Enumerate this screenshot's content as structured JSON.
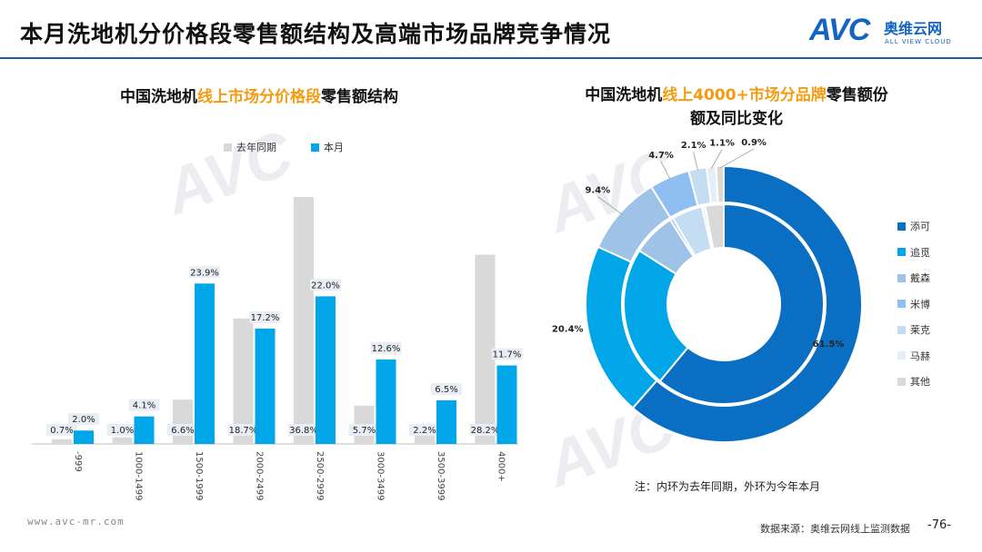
{
  "header": {
    "title": "本月洗地机分价格段零售额结构及高端市场品牌竞争情况",
    "logo_text": "AVC",
    "logo_cn": "奥维云网",
    "logo_en": "ALL VIEW CLOUD"
  },
  "left_chart": {
    "title_pre": "中国洗地机",
    "title_highlight": "线上市场分价格段",
    "title_post": "零售额结构"
  },
  "right_chart": {
    "title_line1_pre": "中国洗地机",
    "title_line1_highlight": "线上4000+市场分品牌",
    "title_line1_post": "零售额份",
    "title_line2": "额及同比变化"
  },
  "colors": {
    "last_year": "#d9d9d9",
    "this_month": "#00a6e8",
    "accent": "#f39c12",
    "rule": "#1e5aa8"
  },
  "chart_data": [
    {
      "type": "bar",
      "categories": [
        "-999",
        "1000-1499",
        "1500-1999",
        "2000-2499",
        "2500-2999",
        "3000-3499",
        "3500-3999",
        "4000+"
      ],
      "series": [
        {
          "name": "去年同期",
          "values": [
            0.7,
            1.0,
            6.6,
            18.7,
            36.8,
            5.7,
            2.2,
            28.2
          ],
          "labels": [
            "0.7%",
            "1.0%",
            "6.6%",
            "18.7%",
            "36.8%",
            "5.7%",
            "2.2%",
            "28.2%"
          ]
        },
        {
          "name": "本月",
          "values": [
            2.0,
            4.1,
            23.9,
            17.2,
            22.0,
            12.6,
            6.5,
            11.7
          ],
          "labels": [
            "2.0%",
            "4.1%",
            "23.9%",
            "17.2%",
            "22.0%",
            "12.6%",
            "6.5%",
            "11.7%"
          ]
        }
      ],
      "ylim": [
        0,
        40
      ],
      "grid": false
    },
    {
      "type": "pie",
      "style": "double-donut",
      "categories": [
        "添可",
        "追觅",
        "戴森",
        "米博",
        "莱克",
        "马赫",
        "其他"
      ],
      "colors": [
        "#0a6fc2",
        "#00a6e8",
        "#9ec3e6",
        "#8fbef2",
        "#c5ddf2",
        "#e4eef9",
        "#d9d9d9"
      ],
      "outer_ring_this_month": [
        61.5,
        20.4,
        9.4,
        4.7,
        2.1,
        1.1,
        0.9
      ],
      "outer_labels": [
        "61.5%",
        "20.4%",
        "9.4%",
        "4.7%",
        "2.1%",
        "1.1%",
        "0.9%"
      ],
      "inner_ring_last_year": [
        61.0,
        23.0,
        7.0,
        0.5,
        5.0,
        0.5,
        3.0
      ],
      "note": "注：内环为去年同期，外环为今年本月"
    }
  ],
  "footer": {
    "website": "www.avc-mr.com",
    "source": "数据来源：奥维云网线上监测数据",
    "page": "-76-"
  }
}
